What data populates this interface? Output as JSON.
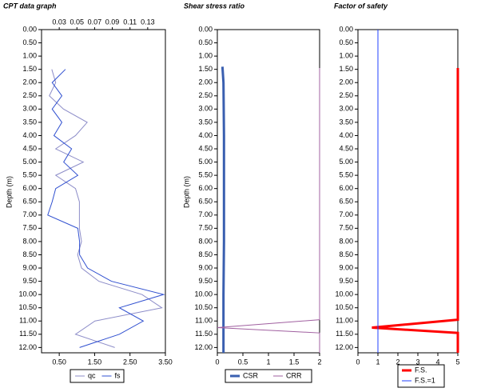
{
  "chart_data": [
    {
      "type": "line",
      "title": "CPT data graph",
      "y_label": "Depth (m)",
      "y_inverted": true,
      "grid": false,
      "legend": "bottom",
      "ylim": [
        0,
        12.2
      ],
      "yticks": [
        {
          "value": 0,
          "label": "0.00"
        },
        {
          "value": 0.5,
          "label": "0.50"
        },
        {
          "value": 1,
          "label": "1.00"
        },
        {
          "value": 1.5,
          "label": "1.50"
        },
        {
          "value": 2,
          "label": "2.00"
        },
        {
          "value": 2.5,
          "label": "2.50"
        },
        {
          "value": 3,
          "label": "3.00"
        },
        {
          "value": 3.5,
          "label": "3.50"
        },
        {
          "value": 4,
          "label": "4.00"
        },
        {
          "value": 4.5,
          "label": "4.50"
        },
        {
          "value": 5,
          "label": "5.00"
        },
        {
          "value": 5.5,
          "label": "5.50"
        },
        {
          "value": 6,
          "label": "6.00"
        },
        {
          "value": 6.5,
          "label": "6.50"
        },
        {
          "value": 7,
          "label": "7.00"
        },
        {
          "value": 7.5,
          "label": "7.50"
        },
        {
          "value": 8,
          "label": "8.00"
        },
        {
          "value": 8.5,
          "label": "8.50"
        },
        {
          "value": 9,
          "label": "9.00"
        },
        {
          "value": 9.5,
          "label": "9.50"
        },
        {
          "value": 10,
          "label": "10.00"
        },
        {
          "value": 10.5,
          "label": "10.50"
        },
        {
          "value": 11,
          "label": "11.00"
        },
        {
          "value": 11.5,
          "label": "11.50"
        },
        {
          "value": 12,
          "label": "12.00"
        }
      ],
      "xlim": [
        0,
        3.5
      ],
      "xticks": [
        {
          "value": 0.5,
          "label": "0.50"
        },
        {
          "value": 1.5,
          "label": "1.50"
        },
        {
          "value": 2.5,
          "label": "2.50"
        },
        {
          "value": 3.5,
          "label": "3.50"
        }
      ],
      "x2lim": [
        0.01,
        0.15
      ],
      "x2ticks": [
        0.03,
        0.05,
        0.07,
        0.09,
        0.11,
        0.13
      ],
      "series": [
        {
          "name": "qc",
          "color": "#8c8cc8",
          "line_width": 1,
          "depth": [
            1.5,
            2,
            2.5,
            3,
            3.5,
            4,
            4.5,
            5,
            5.5,
            6,
            6.5,
            7,
            7.5,
            8,
            8.5,
            9,
            9.5,
            10,
            10.5,
            11,
            11.5,
            12
          ],
          "values": [
            0.29,
            0.4,
            0.22,
            0.62,
            1.29,
            0.96,
            0.4,
            1.18,
            0.4,
            0.96,
            1.07,
            1.07,
            1.07,
            1.13,
            1.02,
            1.13,
            1.62,
            2.84,
            3.4,
            1.51,
            0.96,
            2.07
          ]
        },
        {
          "name": "fs",
          "color": "#3050d0",
          "line_width": 1,
          "axis": "x2",
          "depth": [
            1.5,
            2,
            2.5,
            3,
            3.5,
            4,
            4.5,
            5,
            5.5,
            6,
            6.5,
            7,
            7.5,
            8,
            8.5,
            9,
            9.5,
            10,
            10.5,
            11,
            11.5,
            12
          ],
          "values": [
            0.037,
            0.022,
            0.033,
            0.022,
            0.033,
            0.024,
            0.044,
            0.035,
            0.051,
            0.026,
            0.022,
            0.017,
            0.051,
            0.053,
            0.053,
            0.062,
            0.089,
            0.148,
            0.098,
            0.125,
            0.098,
            0.053
          ]
        }
      ]
    },
    {
      "type": "line",
      "title": "Shear stress ratio",
      "y_label": "Depth (m)",
      "y_inverted": true,
      "grid": false,
      "legend": "bottom",
      "ylim": [
        0,
        12.2
      ],
      "yticks": [
        {
          "value": 0,
          "label": "0.00"
        },
        {
          "value": 0.5,
          "label": "0.50"
        },
        {
          "value": 1,
          "label": "1.00"
        },
        {
          "value": 1.5,
          "label": "1.50"
        },
        {
          "value": 2,
          "label": "2.00"
        },
        {
          "value": 2.5,
          "label": "2.50"
        },
        {
          "value": 3,
          "label": "3.00"
        },
        {
          "value": 3.5,
          "label": "3.50"
        },
        {
          "value": 4,
          "label": "4.00"
        },
        {
          "value": 4.5,
          "label": "4.50"
        },
        {
          "value": 5,
          "label": "5.00"
        },
        {
          "value": 5.5,
          "label": "5.50"
        },
        {
          "value": 6,
          "label": "6.00"
        },
        {
          "value": 6.5,
          "label": "6.50"
        },
        {
          "value": 7,
          "label": "7.00"
        },
        {
          "value": 7.5,
          "label": "7.50"
        },
        {
          "value": 8,
          "label": "8.00"
        },
        {
          "value": 8.5,
          "label": "8.50"
        },
        {
          "value": 9,
          "label": "9.00"
        },
        {
          "value": 9.5,
          "label": "9.50"
        },
        {
          "value": 10,
          "label": "10.00"
        },
        {
          "value": 10.5,
          "label": "10.50"
        },
        {
          "value": 11,
          "label": "11.00"
        },
        {
          "value": 11.5,
          "label": "11.50"
        },
        {
          "value": 12,
          "label": "12.00"
        }
      ],
      "xlim": [
        0,
        2
      ],
      "xticks": [
        0,
        0.5,
        1,
        1.5,
        2
      ],
      "series": [
        {
          "name": "CSR",
          "color": "#3a5fb0",
          "line_width": 3,
          "depth": [
            1.4,
            2,
            4,
            6,
            8,
            10,
            12,
            12.2
          ],
          "values": [
            0.1,
            0.12,
            0.13,
            0.13,
            0.13,
            0.12,
            0.12,
            0.12
          ]
        },
        {
          "name": "CRR",
          "color": "#a060a0",
          "line_width": 1,
          "depth": [
            1.45,
            10.95,
            11.25,
            11.45,
            12.2
          ],
          "values": [
            2,
            2,
            0,
            2,
            2
          ]
        }
      ]
    },
    {
      "type": "line",
      "title": "Factor of safety",
      "y_inverted": true,
      "grid": false,
      "legend": "bottom",
      "ylim": [
        0,
        12.2
      ],
      "yticks": [
        {
          "value": 0,
          "label": "0.00"
        },
        {
          "value": 0.5,
          "label": "0.50"
        },
        {
          "value": 1,
          "label": "1.00"
        },
        {
          "value": 1.5,
          "label": "1.50"
        },
        {
          "value": 2,
          "label": "2.00"
        },
        {
          "value": 2.5,
          "label": "2.50"
        },
        {
          "value": 3,
          "label": "3.00"
        },
        {
          "value": 3.5,
          "label": "3.50"
        },
        {
          "value": 4,
          "label": "4.00"
        },
        {
          "value": 4.5,
          "label": "4.50"
        },
        {
          "value": 5,
          "label": "5.00"
        },
        {
          "value": 5.5,
          "label": "5.50"
        },
        {
          "value": 6,
          "label": "6.00"
        },
        {
          "value": 6.5,
          "label": "6.50"
        },
        {
          "value": 7,
          "label": "7.00"
        },
        {
          "value": 7.5,
          "label": "7.50"
        },
        {
          "value": 8,
          "label": "8.00"
        },
        {
          "value": 8.5,
          "label": "8.50"
        },
        {
          "value": 9,
          "label": "9.00"
        },
        {
          "value": 9.5,
          "label": "9.50"
        },
        {
          "value": 10,
          "label": "10.00"
        },
        {
          "value": 10.5,
          "label": "10.50"
        },
        {
          "value": 11,
          "label": "11.00"
        },
        {
          "value": 11.5,
          "label": "11.50"
        },
        {
          "value": 12,
          "label": "12.00"
        }
      ],
      "xlim": [
        0,
        5
      ],
      "xticks": [
        0,
        1,
        2,
        3,
        4,
        5
      ],
      "series": [
        {
          "name": "F.S.",
          "color": "#ff0000",
          "line_width": 3,
          "depth": [
            1.45,
            10.95,
            11.25,
            11.45,
            12.2
          ],
          "values": [
            5,
            5,
            0.7,
            5,
            5
          ]
        },
        {
          "name": "F.S.=1",
          "color": "#2040ff",
          "line_width": 1,
          "depth": [
            0,
            12.2
          ],
          "values": [
            1,
            1
          ]
        }
      ]
    }
  ]
}
